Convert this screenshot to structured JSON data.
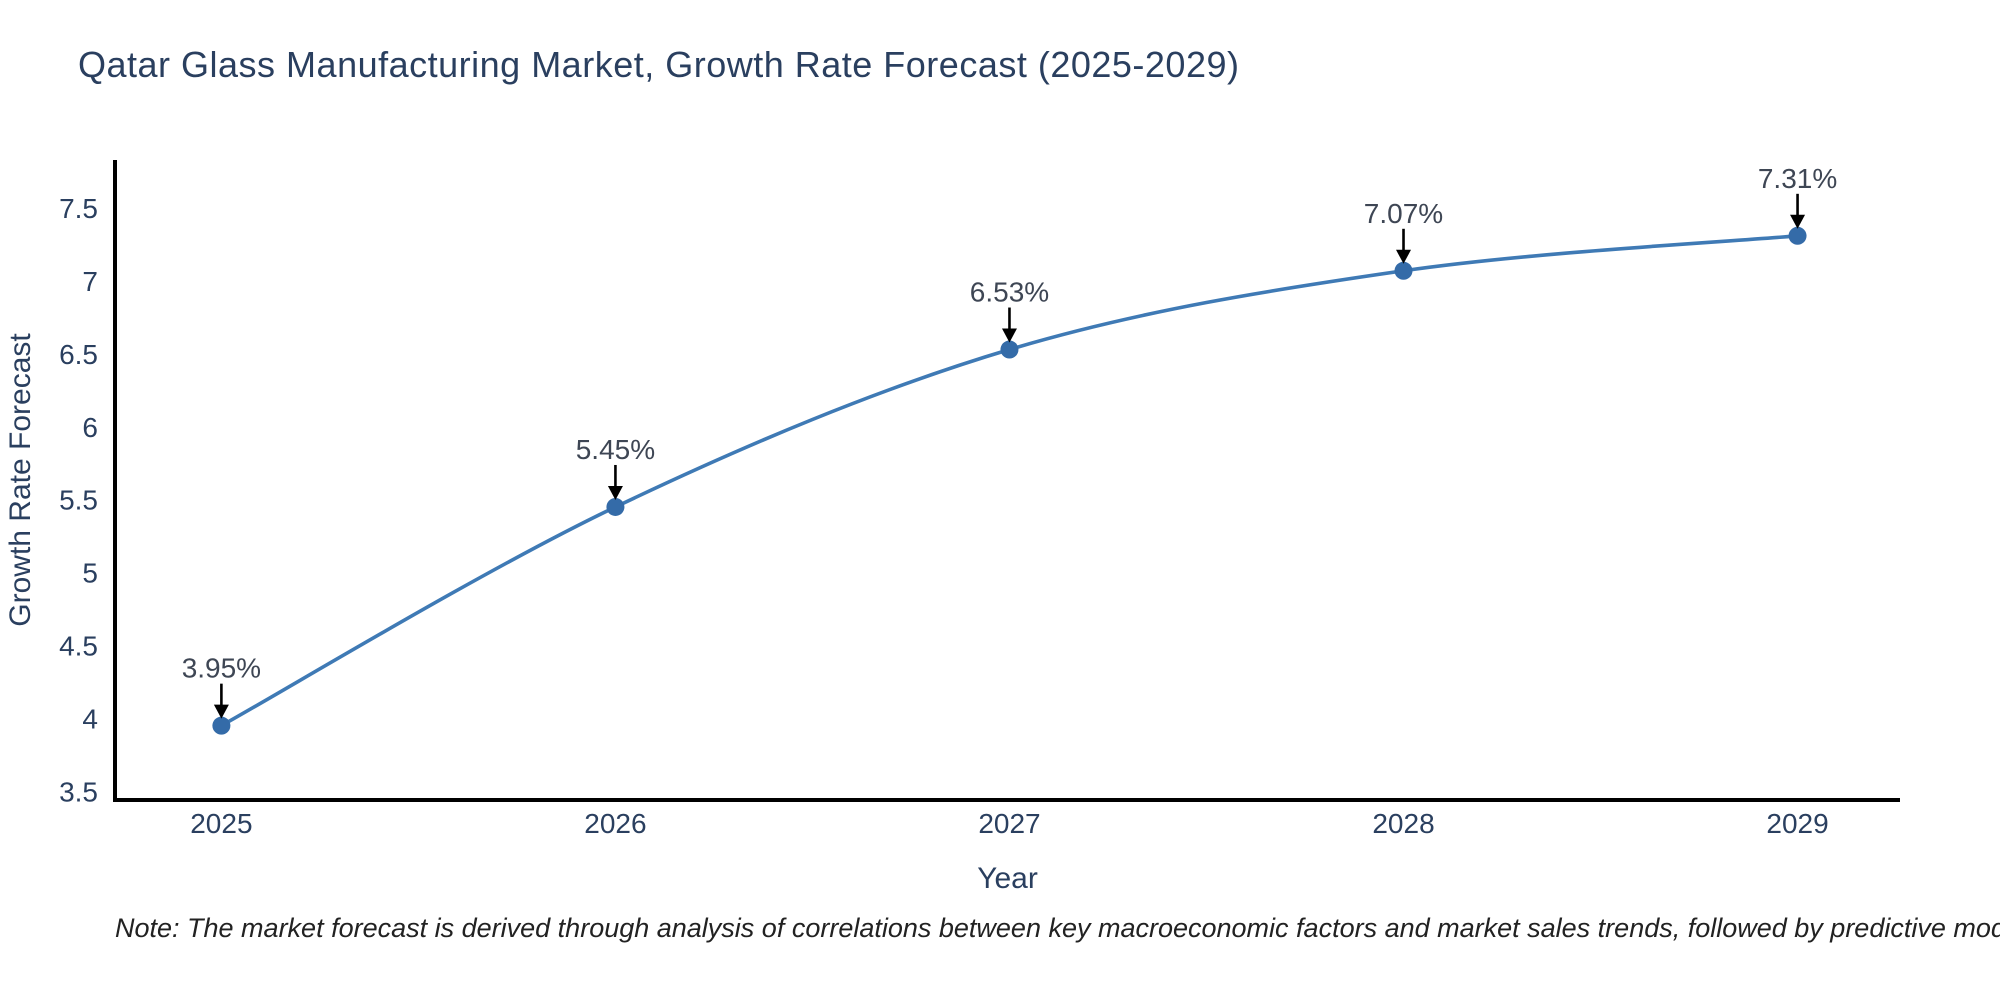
{
  "page": {
    "title": "Qatar Glass Manufacturing Market, Growth Rate Forecast (2025-2029)",
    "note": "Note: The market forecast is derived through analysis of correlations between key macroeconomic factors and market sales trends, followed by predictive modeling to project future sales"
  },
  "chart_data": {
    "type": "line",
    "title": "Qatar Glass Manufacturing Market, Growth Rate Forecast (2025-2029)",
    "x": [
      2025,
      2026,
      2027,
      2028,
      2029
    ],
    "series": [
      {
        "name": "Growth Rate Forecast",
        "values": [
          3.95,
          5.45,
          6.53,
          7.07,
          7.31
        ],
        "labels": [
          "3.95%",
          "5.45%",
          "6.53%",
          "7.07%",
          "7.31%"
        ]
      }
    ],
    "xlabel": "Year",
    "ylabel": "Growth Rate Forecast",
    "xticks": [
      2025,
      2026,
      2027,
      2028,
      2029
    ],
    "xtick_labels": [
      "2025",
      "2026",
      "2027",
      "2028",
      "2029"
    ],
    "yticks": [
      3.5,
      4,
      4.5,
      5,
      5.5,
      6,
      6.5,
      7,
      7.5
    ],
    "ytick_labels": [
      "3.5",
      "4",
      "4.5",
      "5",
      "5.5",
      "6",
      "6.5",
      "7",
      "7.5"
    ],
    "xlim": [
      2024.73,
      2029.26
    ],
    "ylim": [
      3.44,
      7.83
    ],
    "grid": false,
    "legend": "none",
    "line_shape": "spline",
    "annotation_arrows": true,
    "colors": {
      "line": "#3f7ab5",
      "marker": "#346ba8",
      "axis": "#000000",
      "tick_text": "#2a3f5f",
      "title_text": "#2a3f5f",
      "annotation_text": "#3e4654",
      "arrow": "#000000",
      "background": "#ffffff"
    }
  }
}
